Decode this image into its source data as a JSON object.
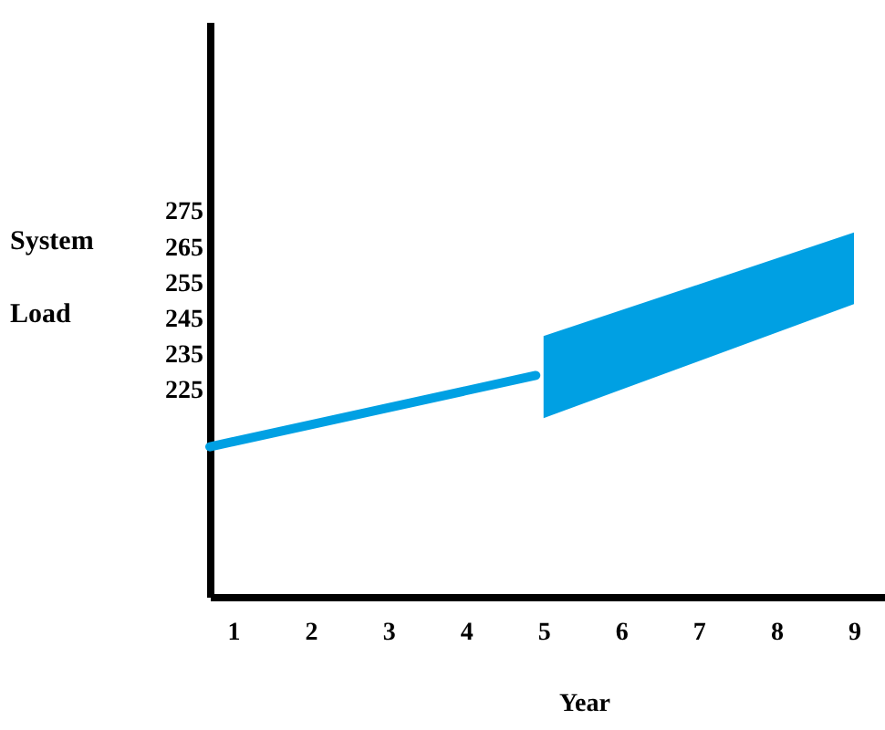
{
  "chart_data": {
    "type": "line",
    "xlabel": "Year",
    "ylabel": "System Load",
    "series": [
      {
        "color": "#00a0e3",
        "x": [
          0.7,
          4.9
        ],
        "values": [
          209,
          229
        ]
      },
      {
        "color": "#00a0e3",
        "x": [
          5,
          9
        ],
        "values": [
          null,
          null
        ],
        "lower": [
          217,
          249
        ],
        "upper": [
          240,
          269
        ]
      }
    ],
    "xlim": [
      0.7,
      9.4
    ],
    "xticks": [
      1,
      2,
      3,
      4,
      5,
      6,
      7,
      8,
      9
    ],
    "ylim": [
      167,
      328
    ],
    "yticks": [
      225,
      235,
      245,
      255,
      265,
      275
    ],
    "grid": false
  }
}
